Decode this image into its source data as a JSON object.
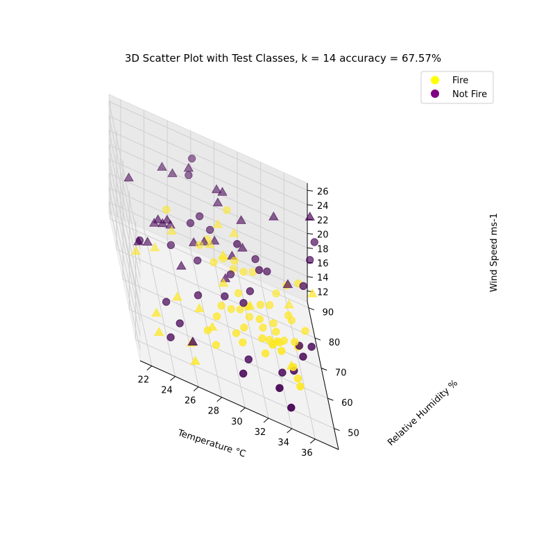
{
  "chart_data": {
    "type": "scatter",
    "title": "3D Scatter Plot with Test Classes, k = 14 accuracy = 67.57%",
    "xlabel": "Temperature °C",
    "ylabel": "Relative Humidity %",
    "zlabel": "Wind Speed ms-1",
    "xlim": [
      21,
      38
    ],
    "ylim": [
      43,
      92
    ],
    "zlim": [
      10.5,
      27
    ],
    "xticks": [
      "22",
      "24",
      "26",
      "28",
      "30",
      "32",
      "34",
      "36"
    ],
    "yticks": [
      "50",
      "60",
      "70",
      "80",
      "90"
    ],
    "zticks": [
      "12",
      "14",
      "16",
      "18",
      "20",
      "22",
      "24",
      "26"
    ],
    "grid": true,
    "legend_position": "top-right",
    "legend": [
      {
        "label": "Fire",
        "color": "#ffff00"
      },
      {
        "label": "Not Fire",
        "color": "#800080"
      }
    ],
    "colors": {
      "fire": "#fde725",
      "not_fire": "#440154"
    },
    "series": [
      {
        "class": "fire",
        "marker": "circle",
        "points": [
          [
            33.5,
            50,
            18
          ],
          [
            34.5,
            50,
            16.5
          ],
          [
            35,
            48,
            15
          ],
          [
            33,
            54,
            17
          ],
          [
            30.5,
            56,
            14.5
          ],
          [
            30,
            57,
            15
          ],
          [
            32.5,
            57,
            14
          ],
          [
            33,
            60,
            15
          ],
          [
            34,
            62,
            14.5
          ],
          [
            31,
            63,
            14
          ],
          [
            29,
            62,
            16
          ],
          [
            30,
            65,
            15
          ],
          [
            33.5,
            64,
            13
          ],
          [
            34,
            66,
            13
          ],
          [
            32.5,
            66,
            15
          ],
          [
            35.5,
            61,
            11
          ],
          [
            34,
            68,
            13.5
          ],
          [
            35.5,
            66,
            14
          ],
          [
            36,
            70,
            12
          ],
          [
            33,
            70,
            12.5
          ],
          [
            34,
            72,
            13
          ],
          [
            31,
            72,
            15
          ],
          [
            33,
            74,
            14
          ],
          [
            30,
            77,
            17
          ],
          [
            34,
            78,
            13
          ],
          [
            31,
            80,
            15
          ],
          [
            35,
            86,
            12
          ],
          [
            33,
            86,
            13.5
          ],
          [
            36,
            88,
            13
          ],
          [
            37,
            88,
            14
          ],
          [
            29,
            84,
            16
          ],
          [
            28,
            78,
            17
          ],
          [
            29,
            74,
            17
          ],
          [
            31,
            69,
            14
          ],
          [
            28.5,
            60,
            15
          ],
          [
            27.5,
            56,
            14
          ],
          [
            28,
            52,
            14
          ],
          [
            32,
            73,
            12
          ],
          [
            31,
            78,
            17
          ],
          [
            36,
            80,
            11.5
          ],
          [
            37,
            77,
            12
          ],
          [
            32.5,
            62,
            14
          ],
          [
            31.5,
            66,
            16
          ],
          [
            32,
            82,
            14.5
          ],
          [
            31,
            90,
            19
          ],
          [
            25,
            75,
            21
          ],
          [
            35.5,
            76,
            13.5
          ],
          [
            34.8,
            70,
            12
          ]
        ]
      },
      {
        "class": "fire",
        "marker": "triangle",
        "points": [
          [
            24,
            75,
            15
          ],
          [
            22,
            68,
            16
          ],
          [
            25,
            58,
            16
          ],
          [
            23,
            54,
            14
          ],
          [
            23,
            50,
            13
          ],
          [
            26,
            54,
            12
          ],
          [
            28,
            58,
            14
          ],
          [
            27,
            60,
            15
          ],
          [
            25.5,
            76,
            18
          ],
          [
            29,
            80,
            17
          ],
          [
            36,
            84,
            12
          ],
          [
            38,
            84,
            15
          ],
          [
            30,
            86,
            18
          ],
          [
            31.5,
            88,
            17
          ],
          [
            30,
            78,
            17
          ],
          [
            32,
            72,
            14
          ],
          [
            35,
            62,
            12
          ],
          [
            29.5,
            68,
            17
          ],
          [
            26,
            48,
            12
          ]
        ]
      },
      {
        "class": "not_fire",
        "marker": "circle",
        "points": [
          [
            30,
            46,
            14
          ],
          [
            33,
            44,
            15
          ],
          [
            34,
            44,
            13
          ],
          [
            25,
            54,
            14
          ],
          [
            24,
            50,
            13
          ],
          [
            24,
            57,
            15
          ],
          [
            31,
            56,
            12.5
          ],
          [
            34,
            58,
            12
          ],
          [
            35,
            58,
            13
          ],
          [
            36,
            62,
            14
          ],
          [
            31,
            64,
            17
          ],
          [
            37,
            67,
            14
          ],
          [
            36,
            68,
            13
          ],
          [
            29,
            80,
            19
          ],
          [
            33,
            82,
            17
          ],
          [
            34,
            82,
            16
          ],
          [
            31,
            74,
            21
          ],
          [
            28,
            78,
            21
          ],
          [
            27,
            74,
            21
          ],
          [
            22,
            62,
            20
          ],
          [
            25,
            68,
            19
          ],
          [
            27.5,
            86,
            23
          ],
          [
            28,
            90,
            24
          ],
          [
            27,
            62,
            16
          ],
          [
            33,
            76,
            18
          ],
          [
            32,
            72,
            16
          ],
          [
            38.5,
            90,
            20
          ],
          [
            38,
            88,
            18
          ],
          [
            27.5,
            72,
            17
          ],
          [
            30.5,
            75,
            16
          ],
          [
            29.5,
            66,
            16
          ],
          [
            37,
            80,
            17
          ]
        ]
      },
      {
        "class": "not_fire",
        "marker": "triangle",
        "points": [
          [
            21.5,
            70,
            25
          ],
          [
            24,
            70,
            21
          ],
          [
            24.5,
            72,
            20
          ],
          [
            25,
            74,
            20
          ],
          [
            22,
            64,
            19
          ],
          [
            23,
            68,
            18
          ],
          [
            24,
            76,
            18
          ],
          [
            25.5,
            78,
            18
          ],
          [
            25,
            82,
            24
          ],
          [
            26,
            84,
            23
          ],
          [
            27.5,
            86,
            24
          ],
          [
            30,
            88,
            22
          ],
          [
            30,
            86,
            21
          ],
          [
            30.5,
            88,
            22
          ],
          [
            32,
            86,
            20
          ],
          [
            35,
            90,
            21
          ],
          [
            28.5,
            80,
            17
          ],
          [
            29.5,
            82,
            17
          ],
          [
            31,
            82,
            16
          ],
          [
            32,
            84,
            17
          ],
          [
            36,
            86,
            14
          ],
          [
            38,
            88,
            24
          ],
          [
            27.5,
            78,
            17
          ],
          [
            26,
            70,
            16
          ],
          [
            30,
            74,
            15.5
          ],
          [
            26,
            52,
            13
          ]
        ]
      }
    ]
  }
}
